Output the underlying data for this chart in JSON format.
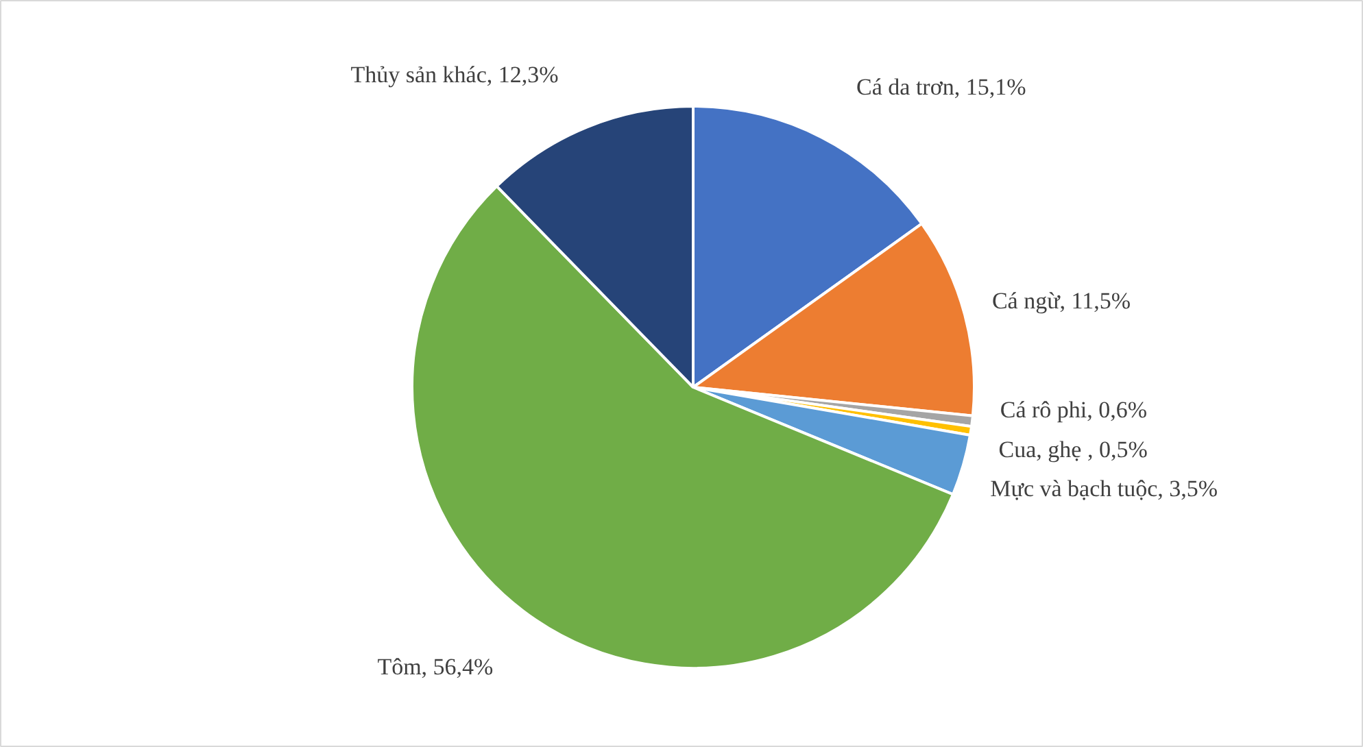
{
  "chart_data": {
    "type": "pie",
    "categories": [
      "Cá da trơn",
      "Cá ngừ",
      "Cá rô phi",
      "Cua, ghẹ ",
      "Mực và bạch tuộc",
      "Tôm",
      "Thủy sản khác"
    ],
    "values": [
      15.1,
      11.5,
      0.6,
      0.5,
      3.5,
      56.4,
      12.3
    ],
    "value_labels": [
      "15,1%",
      "11,5%",
      "0,6%",
      "0,5%",
      "3,5%",
      "56,4%",
      "12,3%"
    ],
    "colors": [
      "#4472c4",
      "#ed7d31",
      "#a5a5a5",
      "#ffc000",
      "#5b9bd5",
      "#70ad47",
      "#264478"
    ]
  }
}
